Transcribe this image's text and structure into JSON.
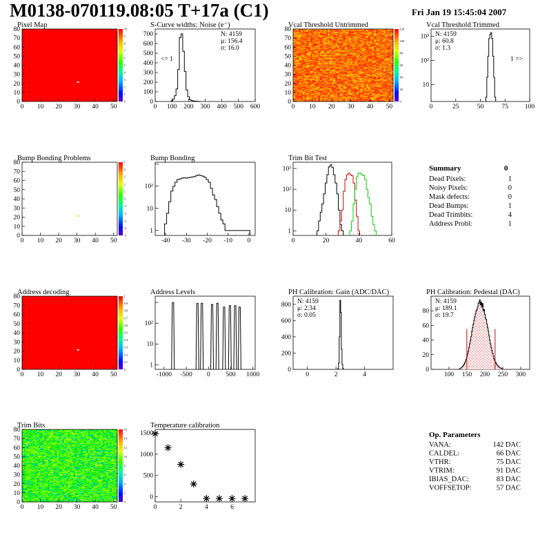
{
  "header": {
    "title": "M0138-070119.08:05 T+17a (C1)",
    "date": "Fri Jan 19 15:45:04 2007"
  },
  "colors": {
    "map_red": "#ff0000",
    "pixel_hot": "#ffffff",
    "hist_line": "#000000",
    "trim_red": "#cc0000",
    "trim_green": "#00cc00",
    "pedestal_fill": "#cc0000"
  },
  "chart_data": [
    {
      "id": "pixel-map",
      "type": "heatmap",
      "title": "Pixel Map",
      "xlim": [
        0,
        52
      ],
      "ylim": [
        0,
        80
      ],
      "xticks": [
        0,
        10,
        20,
        30,
        40,
        50
      ],
      "yticks": [
        0,
        10,
        20,
        30,
        40,
        50,
        60,
        70,
        80
      ],
      "zticks": [
        "0",
        "1",
        "2",
        "3",
        "4",
        "5",
        "6",
        "7",
        "8",
        "9",
        "10"
      ],
      "fill": "uniform red",
      "hot_pixel": [
        30,
        21
      ]
    },
    {
      "id": "scurve",
      "type": "bar",
      "title": "S-Curve widths: Noise (e⁻)",
      "xlim": [
        0,
        600
      ],
      "ylim": [
        0,
        750
      ],
      "xticks": [
        0,
        100,
        200,
        300,
        400,
        500,
        600
      ],
      "yticks": [
        0,
        100,
        200,
        300,
        400,
        500,
        600,
        700
      ],
      "stats": [
        "N: 4159",
        "μ: 156.4",
        "σ: 16.0"
      ],
      "annotation": "<= 1",
      "bin_width": 10,
      "bins_x": [
        100,
        110,
        120,
        130,
        140,
        150,
        160,
        170,
        180,
        190,
        200,
        210,
        220,
        230,
        240,
        250,
        260,
        270
      ],
      "values": [
        5,
        25,
        60,
        130,
        330,
        660,
        700,
        520,
        310,
        120,
        50,
        20,
        10,
        6,
        4,
        2,
        1,
        0
      ]
    },
    {
      "id": "vcal-untrimmed",
      "type": "heatmap",
      "title": "Vcal Threshold Untrimmed",
      "xlim": [
        0,
        52
      ],
      "ylim": [
        0,
        80
      ],
      "xticks": [
        0,
        10,
        20,
        30,
        40,
        50
      ],
      "yticks": [
        0,
        10,
        20,
        30,
        40,
        50,
        60,
        70,
        80
      ],
      "zticks": [
        "0",
        "20",
        "40",
        "60",
        "80",
        "100",
        "120"
      ],
      "fill": "noise orange-red"
    },
    {
      "id": "vcal-trimmed",
      "type": "bar",
      "title": "Vcal Threshold Trimmed",
      "log_y": true,
      "xlim": [
        0,
        100
      ],
      "ylim": [
        2,
        2000
      ],
      "xticks": [
        0,
        25,
        50,
        75,
        100
      ],
      "yticks": [
        "10",
        "10²",
        "10³"
      ],
      "stats": [
        "N: 4159",
        "μ: 60.8",
        "σ:  1.3"
      ],
      "annotation": "1 =>",
      "bin_width": 1,
      "bins_x": [
        56,
        57,
        58,
        59,
        60,
        61,
        62,
        63,
        64,
        65
      ],
      "values": [
        3,
        20,
        150,
        800,
        1200,
        1400,
        800,
        150,
        20,
        3
      ]
    },
    {
      "id": "bump-problems",
      "type": "heatmap",
      "title": "Bump Bonding Problems",
      "xlim": [
        0,
        52
      ],
      "ylim": [
        0,
        80
      ],
      "xticks": [
        0,
        10,
        20,
        30,
        40,
        50
      ],
      "yticks": [
        0,
        10,
        20,
        30,
        40,
        50,
        60,
        70,
        80
      ],
      "zticks": [
        "-5",
        "-4",
        "-3",
        "-2",
        "-1",
        "0",
        "1",
        "2",
        "3",
        "4",
        "5"
      ],
      "fill": "white",
      "marked_pixel": [
        30,
        21
      ]
    },
    {
      "id": "bump-bonding",
      "type": "bar",
      "title": "Bump Bonding",
      "log_y": true,
      "xlim": [
        -45,
        3
      ],
      "ylim": [
        0.6,
        1200
      ],
      "xticks": [
        -40,
        -30,
        -20,
        -10,
        0
      ],
      "yticks": [
        "1",
        "10",
        "10²"
      ],
      "bins_x": [
        -40,
        -39,
        -38,
        -37,
        -36,
        -35,
        -34,
        -33,
        -32,
        -31,
        -30,
        -29,
        -28,
        -27,
        -26,
        -25,
        -24,
        -23,
        -22,
        -21,
        -20,
        -19,
        -18,
        -17,
        -16,
        -15,
        -14,
        -13,
        -12,
        -11,
        -10,
        0
      ],
      "values": [
        2,
        6,
        20,
        60,
        100,
        150,
        200,
        210,
        230,
        240,
        230,
        240,
        250,
        260,
        270,
        300,
        320,
        300,
        280,
        250,
        200,
        150,
        80,
        40,
        25,
        12,
        6,
        3,
        2,
        1,
        1,
        1
      ]
    },
    {
      "id": "trim-bit-test",
      "type": "bar",
      "title": "Trim Bit Test",
      "log_y": true,
      "xlim": [
        0,
        60
      ],
      "ylim": [
        0.6,
        2000
      ],
      "xticks": [
        0,
        20,
        40,
        60
      ],
      "yticks": [
        "1",
        "10",
        "10²",
        "10³"
      ],
      "series": [
        {
          "color": "#000000",
          "bins_x": [
            15,
            16,
            17,
            18,
            19,
            20,
            21,
            22,
            23,
            24,
            25,
            26,
            27,
            28,
            29,
            30
          ],
          "values": [
            1,
            3,
            8,
            20,
            60,
            200,
            500,
            1200,
            1500,
            1100,
            500,
            200,
            60,
            10,
            2,
            1
          ]
        },
        {
          "color": "#cc0000",
          "bins_x": [
            28,
            29,
            30,
            31,
            32,
            33,
            34,
            35,
            36,
            37,
            38,
            39,
            40
          ],
          "values": [
            1,
            3,
            10,
            80,
            300,
            500,
            600,
            500,
            450,
            200,
            30,
            5,
            1
          ]
        },
        {
          "color": "#00cc00",
          "bins_x": [
            35,
            36,
            37,
            38,
            39,
            40,
            41,
            42,
            43,
            44,
            45,
            46,
            47,
            48,
            49,
            50
          ],
          "values": [
            1,
            3,
            20,
            100,
            400,
            600,
            600,
            500,
            450,
            300,
            100,
            40,
            20,
            5,
            2,
            1
          ]
        }
      ]
    },
    {
      "id": "address-decoding",
      "type": "heatmap",
      "title": "Address decoding",
      "xlim": [
        0,
        52
      ],
      "ylim": [
        0,
        80
      ],
      "xticks": [
        0,
        10,
        20,
        30,
        40,
        50
      ],
      "yticks": [
        0,
        10,
        20,
        30,
        40,
        50,
        60,
        70,
        80
      ],
      "zticks": [
        "0",
        "0.1",
        "0.2",
        "0.3",
        "0.4",
        "0.5",
        "0.6",
        "0.7",
        "0.8",
        "0.9",
        "1"
      ],
      "fill": "uniform red",
      "hot_pixel": [
        30,
        21
      ]
    },
    {
      "id": "address-levels",
      "type": "bar",
      "title": "Address Levels",
      "log_y": true,
      "xlim": [
        -1200,
        1050
      ],
      "ylim": [
        0.6,
        2000
      ],
      "xticks": [
        -1000,
        -500,
        0,
        500,
        1000
      ],
      "yticks": [
        "1",
        "10",
        "10²"
      ],
      "peaks_x": [
        -800,
        -250,
        -150,
        80,
        200,
        350,
        480,
        600,
        700
      ],
      "peaks_values": [
        1000,
        900,
        900,
        800,
        900,
        600,
        700,
        700,
        600
      ]
    },
    {
      "id": "ph-gain",
      "type": "bar",
      "title": "PH Calibration: Gain (ADC/DAC)",
      "xlim": [
        -1,
        6
      ],
      "ylim": [
        0,
        900
      ],
      "xticks": [
        0,
        2,
        4
      ],
      "yticks": [
        0,
        200,
        400,
        600,
        800
      ],
      "stats": [
        "N: 4159",
        "μ: 2.34",
        "σ: 0.05"
      ],
      "bin_width": 0.05,
      "bins_x": [
        2.15,
        2.2,
        2.25,
        2.3,
        2.35,
        2.4,
        2.45,
        2.5
      ],
      "values": [
        10,
        80,
        400,
        850,
        700,
        250,
        60,
        10
      ]
    },
    {
      "id": "ph-pedestal",
      "type": "bar",
      "title": "PH Calibration: Pedestal (DAC)",
      "xlim": [
        50,
        325
      ],
      "ylim": [
        0,
        100
      ],
      "xticks": [
        100,
        150,
        200,
        250,
        300
      ],
      "yticks": [
        0,
        20,
        40,
        60,
        80
      ],
      "stats": [
        "N: 4159",
        "μ: 189.1",
        "σ: 19.7"
      ],
      "cut_lines_x": [
        149.7,
        228.5
      ],
      "bin_width": 2,
      "bins_x": [
        130,
        132,
        134,
        136,
        138,
        140,
        142,
        144,
        146,
        148,
        150,
        152,
        154,
        156,
        158,
        160,
        162,
        164,
        166,
        168,
        170,
        172,
        174,
        176,
        178,
        180,
        182,
        184,
        186,
        188,
        190,
        192,
        194,
        196,
        198,
        200,
        202,
        204,
        206,
        208,
        210,
        212,
        214,
        216,
        218,
        220,
        222,
        224,
        226,
        228,
        230,
        232,
        234,
        236,
        238,
        240,
        242,
        244,
        246,
        248
      ],
      "values": [
        1,
        1,
        2,
        3,
        4,
        5,
        7,
        9,
        11,
        14,
        17,
        21,
        25,
        30,
        35,
        40,
        45,
        52,
        57,
        62,
        67,
        72,
        76,
        80,
        82,
        85,
        90,
        92,
        95,
        88,
        92,
        85,
        90,
        80,
        82,
        75,
        70,
        68,
        62,
        57,
        52,
        46,
        40,
        35,
        30,
        26,
        22,
        18,
        14,
        12,
        10,
        8,
        6,
        5,
        4,
        3,
        2,
        2,
        1,
        1
      ]
    },
    {
      "id": "trim-bits",
      "type": "heatmap",
      "title": "Trim Bits",
      "xlim": [
        0,
        52
      ],
      "ylim": [
        0,
        80
      ],
      "xticks": [
        0,
        10,
        20,
        30,
        40,
        50
      ],
      "yticks": [
        0,
        10,
        20,
        30,
        40,
        50,
        60,
        70,
        80
      ],
      "zticks": [
        "0",
        "2",
        "4",
        "6",
        "8",
        "10",
        "12",
        "14",
        "16"
      ],
      "fill": "noise green"
    },
    {
      "id": "temperature-calibration",
      "type": "scatter",
      "title": "Temperature calibration",
      "xlim": [
        0,
        7.8
      ],
      "ylim": [
        -120,
        1580
      ],
      "xticks": [
        0,
        2,
        4,
        6
      ],
      "yticks": [
        0,
        500,
        1000,
        1500
      ],
      "x": [
        0,
        1,
        2,
        3,
        4,
        5,
        6,
        7
      ],
      "y": [
        1480,
        1150,
        760,
        300,
        -40,
        -40,
        -40,
        -40
      ]
    }
  ],
  "summary": {
    "title": "Summary",
    "total": "0",
    "rows": [
      {
        "label": "Dead Pixels:",
        "value": "1"
      },
      {
        "label": "Noisy Pixels:",
        "value": "0"
      },
      {
        "label": "Mask defects:",
        "value": "0"
      },
      {
        "label": "Dead Bumps:",
        "value": "1"
      },
      {
        "label": "Dead Trimbits:",
        "value": "4"
      },
      {
        "label": "Address Probl:",
        "value": "1"
      }
    ]
  },
  "op_params": {
    "title": "Op. Parameters",
    "rows": [
      {
        "label": "VANA:",
        "value": "142 DAC"
      },
      {
        "label": "CALDEL:",
        "value": "66 DAC"
      },
      {
        "label": "VTHR:",
        "value": "75 DAC"
      },
      {
        "label": "VTRIM:",
        "value": "91 DAC"
      },
      {
        "label": "IBIAS_DAC:",
        "value": "83 DAC"
      },
      {
        "label": "VOFFSETOP:",
        "value": "57 DAC"
      }
    ]
  }
}
